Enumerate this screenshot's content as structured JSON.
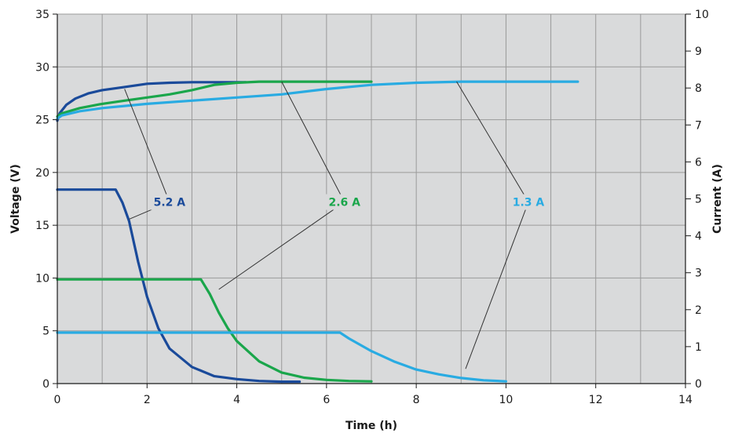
{
  "chart_data": {
    "type": "line",
    "xlabel": "Time (h)",
    "ylabel": "Voltage (V)",
    "y2label": "Current (A)",
    "xlim": [
      0,
      14
    ],
    "ylim": [
      0,
      35
    ],
    "y2lim": [
      0,
      10
    ],
    "xticks": [
      0,
      2,
      4,
      6,
      8,
      10,
      12,
      14
    ],
    "yticks": [
      0,
      5,
      10,
      15,
      20,
      25,
      30,
      35
    ],
    "y2ticks": [
      0,
      1,
      2,
      3,
      4,
      5,
      6,
      7,
      8,
      9,
      10
    ],
    "x_minor_gridlines": [
      1,
      3,
      5,
      7,
      9,
      11,
      13
    ],
    "grid": true,
    "background_color": "#d9dadb",
    "grid_color": "#9a9a9a",
    "callouts": [
      {
        "text": "5.2 A",
        "color": "#1a4a9a",
        "x": 2.5,
        "y": 17.2,
        "targets": [
          {
            "axis": "voltage",
            "x": 1.5,
            "y": 27.9
          },
          {
            "axis": "current",
            "x": 1.6,
            "y": 4.45
          }
        ]
      },
      {
        "text": "2.6 A",
        "color": "#1aa64b",
        "x": 6.4,
        "y": 17.2,
        "targets": [
          {
            "axis": "voltage",
            "x": 5.0,
            "y": 28.6
          },
          {
            "axis": "current",
            "x": 3.6,
            "y": 2.55
          }
        ]
      },
      {
        "text": "1.3 A",
        "color": "#29abe2",
        "x": 10.5,
        "y": 17.2,
        "targets": [
          {
            "axis": "voltage",
            "x": 8.9,
            "y": 28.6
          },
          {
            "axis": "current",
            "x": 9.1,
            "y": 0.4
          }
        ]
      }
    ],
    "series": [
      {
        "group": "5.2 A",
        "axis": "voltage",
        "color": "#1a4a9a",
        "x": [
          0,
          0.05,
          0.2,
          0.4,
          0.7,
          1.0,
          1.5,
          2.0,
          2.5,
          3.0,
          3.5,
          4.0,
          4.2
        ],
        "y": [
          24.9,
          25.6,
          26.4,
          27.0,
          27.5,
          27.8,
          28.1,
          28.4,
          28.5,
          28.55,
          28.55,
          28.55,
          28.55
        ]
      },
      {
        "group": "2.6 A",
        "axis": "voltage",
        "color": "#1aa64b",
        "x": [
          0,
          0.1,
          0.5,
          1.0,
          1.5,
          2.0,
          2.5,
          3.0,
          3.5,
          4.0,
          4.5,
          5.0,
          6.0,
          7.0
        ],
        "y": [
          25.3,
          25.6,
          26.1,
          26.5,
          26.8,
          27.1,
          27.4,
          27.8,
          28.3,
          28.5,
          28.6,
          28.6,
          28.6,
          28.6
        ]
      },
      {
        "group": "1.3 A",
        "axis": "voltage",
        "color": "#29abe2",
        "x": [
          0,
          0.1,
          0.5,
          1.0,
          2.0,
          3.0,
          4.0,
          5.0,
          6.0,
          7.0,
          8.0,
          9.0,
          10.0,
          11.0,
          11.6
        ],
        "y": [
          25.1,
          25.4,
          25.8,
          26.1,
          26.5,
          26.8,
          27.1,
          27.4,
          27.9,
          28.3,
          28.5,
          28.6,
          28.6,
          28.6,
          28.6
        ]
      },
      {
        "group": "5.2 A",
        "axis": "current",
        "color": "#1a4a9a",
        "x": [
          0,
          1.3,
          1.45,
          1.6,
          1.8,
          2.0,
          2.25,
          2.5,
          3.0,
          3.5,
          4.0,
          4.5,
          5.0,
          5.4
        ],
        "y": [
          5.25,
          5.25,
          4.9,
          4.4,
          3.3,
          2.35,
          1.5,
          0.95,
          0.45,
          0.2,
          0.12,
          0.07,
          0.05,
          0.05
        ]
      },
      {
        "group": "2.6 A",
        "axis": "current",
        "color": "#1aa64b",
        "x": [
          0,
          3.2,
          3.4,
          3.6,
          3.8,
          4.0,
          4.5,
          5.0,
          5.5,
          6.0,
          6.5,
          7.0
        ],
        "y": [
          2.82,
          2.82,
          2.42,
          1.92,
          1.5,
          1.15,
          0.6,
          0.3,
          0.16,
          0.1,
          0.07,
          0.06
        ]
      },
      {
        "group": "1.3 A",
        "axis": "current",
        "color": "#29abe2",
        "x": [
          0,
          6.3,
          6.5,
          7.0,
          7.5,
          8.0,
          8.5,
          9.0,
          9.5,
          10.0
        ],
        "y": [
          1.38,
          1.38,
          1.22,
          0.88,
          0.6,
          0.38,
          0.25,
          0.15,
          0.09,
          0.06
        ]
      }
    ]
  }
}
